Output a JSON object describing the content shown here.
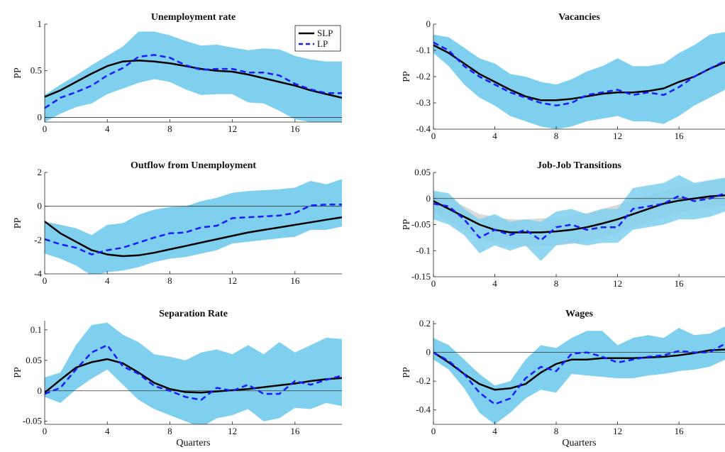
{
  "figure": {
    "xlabel_bottom": "Quarters"
  },
  "colors": {
    "band_slp": "#7fd0ee",
    "band_lp": "#d9d9d9",
    "slp": "#000000",
    "lp": "#1a1aff",
    "zero": "#333333"
  },
  "chart_data": [
    {
      "type": "line",
      "title": "Unemployment rate",
      "ylabel": "PP",
      "xlabel": "",
      "xlim": [
        0,
        19
      ],
      "xticks": [
        0,
        4,
        8,
        12,
        16
      ],
      "ylim": [
        -0.05,
        1
      ],
      "yticks": [
        0,
        0.5,
        1
      ],
      "ytick_labels": [
        "0",
        "0.5",
        "1"
      ],
      "legend": {
        "position": "top-right",
        "entries": [
          "SLP",
          "LP"
        ]
      },
      "x": [
        0,
        1,
        2,
        3,
        4,
        5,
        6,
        7,
        8,
        9,
        10,
        11,
        12,
        13,
        14,
        15,
        16,
        17,
        18,
        19
      ],
      "series": [
        {
          "name": "SLP",
          "values": [
            0.22,
            0.29,
            0.38,
            0.47,
            0.55,
            0.6,
            0.61,
            0.6,
            0.58,
            0.55,
            0.52,
            0.5,
            0.49,
            0.46,
            0.42,
            0.38,
            0.34,
            0.29,
            0.25,
            0.21
          ]
        },
        {
          "name": "LP",
          "values": [
            0.1,
            0.21,
            0.27,
            0.34,
            0.45,
            0.53,
            0.65,
            0.67,
            0.64,
            0.56,
            0.51,
            0.52,
            0.52,
            0.48,
            0.48,
            0.45,
            0.36,
            0.3,
            0.26,
            0.26
          ]
        }
      ],
      "bands": [
        {
          "upper": [
            0.24,
            0.35,
            0.45,
            0.56,
            0.66,
            0.76,
            0.92,
            0.92,
            0.88,
            0.82,
            0.77,
            0.78,
            0.75,
            0.72,
            0.74,
            0.73,
            0.66,
            0.62,
            0.6,
            0.6
          ],
          "lower": [
            -0.05,
            0.04,
            0.11,
            0.15,
            0.25,
            0.31,
            0.37,
            0.41,
            0.38,
            0.3,
            0.24,
            0.25,
            0.25,
            0.16,
            0.15,
            0.07,
            -0.02,
            -0.05,
            -0.07,
            -0.07
          ]
        }
      ]
    },
    {
      "type": "line",
      "title": "Vacancies",
      "ylabel": "PP",
      "xlabel": "",
      "xlim": [
        0,
        19
      ],
      "xticks": [
        0,
        4,
        8,
        12,
        16
      ],
      "ylim": [
        -0.4,
        0
      ],
      "yticks": [
        -0.4,
        -0.3,
        -0.2,
        -0.1,
        0
      ],
      "ytick_labels": [
        "-0.4",
        "-0.3",
        "-0.2",
        "-0.1",
        "0"
      ],
      "x": [
        0,
        1,
        2,
        3,
        4,
        5,
        6,
        7,
        8,
        9,
        10,
        11,
        12,
        13,
        14,
        15,
        16,
        17,
        18,
        19
      ],
      "series": [
        {
          "name": "SLP",
          "values": [
            -0.08,
            -0.11,
            -0.15,
            -0.19,
            -0.22,
            -0.25,
            -0.275,
            -0.29,
            -0.29,
            -0.285,
            -0.275,
            -0.265,
            -0.26,
            -0.26,
            -0.255,
            -0.245,
            -0.22,
            -0.2,
            -0.17,
            -0.145
          ]
        },
        {
          "name": "LP",
          "values": [
            -0.07,
            -0.1,
            -0.16,
            -0.2,
            -0.23,
            -0.26,
            -0.28,
            -0.3,
            -0.31,
            -0.3,
            -0.27,
            -0.26,
            -0.25,
            -0.27,
            -0.26,
            -0.27,
            -0.24,
            -0.2,
            -0.17,
            -0.14
          ]
        }
      ],
      "bands": [
        {
          "upper": [
            -0.04,
            -0.05,
            -0.09,
            -0.13,
            -0.15,
            -0.19,
            -0.2,
            -0.22,
            -0.23,
            -0.21,
            -0.18,
            -0.16,
            -0.13,
            -0.16,
            -0.16,
            -0.15,
            -0.11,
            -0.08,
            -0.04,
            -0.03
          ],
          "lower": [
            -0.11,
            -0.16,
            -0.23,
            -0.28,
            -0.31,
            -0.35,
            -0.37,
            -0.39,
            -0.4,
            -0.39,
            -0.37,
            -0.36,
            -0.35,
            -0.37,
            -0.37,
            -0.38,
            -0.35,
            -0.31,
            -0.28,
            -0.25
          ]
        }
      ]
    },
    {
      "type": "line",
      "title": "Outflow from Unemployment",
      "ylabel": "PP",
      "xlabel": "",
      "xlim": [
        0,
        19
      ],
      "xticks": [
        0,
        4,
        8,
        12,
        16
      ],
      "ylim": [
        -4,
        2
      ],
      "yticks": [
        -4,
        -2,
        0,
        2
      ],
      "ytick_labels": [
        "-4",
        "-2",
        "0",
        "2"
      ],
      "x": [
        0,
        1,
        2,
        3,
        4,
        5,
        6,
        7,
        8,
        9,
        10,
        11,
        12,
        13,
        14,
        15,
        16,
        17,
        18,
        19
      ],
      "series": [
        {
          "name": "SLP",
          "values": [
            -0.9,
            -1.6,
            -2.1,
            -2.6,
            -2.85,
            -2.95,
            -2.9,
            -2.75,
            -2.55,
            -2.35,
            -2.15,
            -1.95,
            -1.75,
            -1.55,
            -1.4,
            -1.25,
            -1.1,
            -0.95,
            -0.8,
            -0.65
          ]
        },
        {
          "name": "LP",
          "values": [
            -1.95,
            -2.25,
            -2.45,
            -2.85,
            -2.6,
            -2.45,
            -2.15,
            -1.85,
            -1.6,
            -1.55,
            -1.25,
            -1.15,
            -0.7,
            -0.65,
            -0.6,
            -0.55,
            -0.4,
            0.05,
            0.1,
            0.1
          ]
        }
      ],
      "bands": [
        {
          "upper": [
            -0.9,
            -1.1,
            -1.3,
            -1.7,
            -1.1,
            -1.0,
            -0.5,
            -0.2,
            -0.05,
            0.0,
            0.3,
            0.5,
            0.8,
            0.9,
            0.95,
            1.0,
            1.1,
            1.5,
            1.3,
            1.6
          ],
          "lower": [
            -2.8,
            -3.1,
            -3.5,
            -4.1,
            -3.9,
            -3.8,
            -3.6,
            -3.3,
            -3.1,
            -3.0,
            -2.8,
            -2.6,
            -2.2,
            -2.1,
            -2.0,
            -1.9,
            -1.8,
            -1.4,
            -1.4,
            -1.2
          ]
        }
      ]
    },
    {
      "type": "line",
      "title": "Job-Job Transitions",
      "ylabel": "PP",
      "xlabel": "",
      "xlim": [
        0,
        19
      ],
      "xticks": [
        0,
        4,
        8,
        12,
        16
      ],
      "ylim": [
        -0.15,
        0.05
      ],
      "yticks": [
        -0.15,
        -0.1,
        -0.05,
        0,
        0.05
      ],
      "ytick_labels": [
        "-0.15",
        "-0.1",
        "-0.05",
        "0",
        "0.05"
      ],
      "x": [
        0,
        1,
        2,
        3,
        4,
        5,
        6,
        7,
        8,
        9,
        10,
        11,
        12,
        13,
        14,
        15,
        16,
        17,
        18,
        19
      ],
      "series": [
        {
          "name": "SLP",
          "values": [
            -0.005,
            -0.02,
            -0.035,
            -0.05,
            -0.06,
            -0.065,
            -0.065,
            -0.065,
            -0.063,
            -0.06,
            -0.055,
            -0.048,
            -0.04,
            -0.03,
            -0.02,
            -0.01,
            -0.004,
            0.0,
            0.004,
            0.006
          ]
        },
        {
          "name": "LP",
          "values": [
            -0.01,
            -0.015,
            -0.04,
            -0.075,
            -0.06,
            -0.07,
            -0.06,
            -0.08,
            -0.055,
            -0.05,
            -0.06,
            -0.055,
            -0.055,
            -0.02,
            -0.015,
            -0.01,
            0.005,
            -0.005,
            0.0,
            0.01
          ]
        }
      ],
      "bands": [
        {
          "upper": [
            0.015,
            0.01,
            -0.02,
            -0.04,
            -0.03,
            -0.045,
            -0.04,
            -0.045,
            -0.025,
            -0.02,
            -0.03,
            -0.02,
            -0.02,
            0.02,
            0.025,
            0.03,
            0.045,
            0.03,
            0.035,
            0.04
          ],
          "lower": [
            -0.04,
            -0.05,
            -0.07,
            -0.105,
            -0.09,
            -0.1,
            -0.09,
            -0.12,
            -0.09,
            -0.085,
            -0.09,
            -0.085,
            -0.085,
            -0.06,
            -0.055,
            -0.05,
            -0.04,
            -0.04,
            -0.035,
            -0.025
          ]
        },
        {
          "upper": [
            0.01,
            0.0,
            -0.015,
            -0.03,
            -0.035,
            -0.04,
            -0.04,
            -0.038,
            -0.036,
            -0.033,
            -0.028,
            -0.02,
            -0.012,
            -0.003,
            0.006,
            0.015,
            0.022,
            0.028,
            0.033,
            0.038
          ],
          "lower": [
            -0.025,
            -0.045,
            -0.06,
            -0.075,
            -0.085,
            -0.09,
            -0.092,
            -0.092,
            -0.09,
            -0.087,
            -0.082,
            -0.075,
            -0.066,
            -0.056,
            -0.046,
            -0.036,
            -0.028,
            -0.022,
            -0.018,
            -0.015
          ]
        }
      ]
    },
    {
      "type": "line",
      "title": "Separation Rate",
      "ylabel": "PP",
      "xlabel": "Quarters",
      "xlim": [
        0,
        19
      ],
      "xticks": [
        0,
        4,
        8,
        12,
        16
      ],
      "ylim": [
        -0.055,
        0.115
      ],
      "yticks": [
        -0.05,
        0,
        0.05,
        0.1
      ],
      "ytick_labels": [
        "-0.05",
        "0",
        "0.05",
        "0.1"
      ],
      "x": [
        0,
        1,
        2,
        3,
        4,
        5,
        6,
        7,
        8,
        9,
        10,
        11,
        12,
        13,
        14,
        15,
        16,
        17,
        18,
        19
      ],
      "series": [
        {
          "name": "SLP",
          "values": [
            -0.003,
            0.018,
            0.038,
            0.047,
            0.052,
            0.045,
            0.03,
            0.013,
            0.003,
            -0.002,
            -0.003,
            -0.001,
            0.001,
            0.003,
            0.006,
            0.009,
            0.012,
            0.016,
            0.019,
            0.021
          ]
        },
        {
          "name": "LP",
          "values": [
            -0.005,
            0.005,
            0.035,
            0.063,
            0.075,
            0.04,
            0.028,
            0.008,
            0.0,
            -0.01,
            -0.015,
            0.005,
            0.0,
            0.01,
            -0.005,
            -0.005,
            0.016,
            0.01,
            0.018,
            0.025
          ]
        }
      ],
      "bands": [
        {
          "upper": [
            0.022,
            0.03,
            0.075,
            0.108,
            0.112,
            0.092,
            0.08,
            0.06,
            0.056,
            0.05,
            0.063,
            0.068,
            0.06,
            0.075,
            0.06,
            0.08,
            0.063,
            0.075,
            0.087,
            0.085
          ],
          "lower": [
            -0.01,
            -0.02,
            0.002,
            0.02,
            0.035,
            0.01,
            -0.015,
            -0.03,
            -0.04,
            -0.05,
            -0.06,
            -0.045,
            -0.04,
            -0.03,
            -0.05,
            -0.045,
            -0.028,
            -0.03,
            -0.02,
            -0.025
          ]
        }
      ]
    },
    {
      "type": "line",
      "title": "Wages",
      "ylabel": "PP",
      "xlabel": "Quarters",
      "xlim": [
        0,
        19
      ],
      "xticks": [
        0,
        4,
        8,
        12,
        16
      ],
      "ylim": [
        -0.5,
        0.22
      ],
      "yticks": [
        -0.4,
        -0.2,
        0,
        0.2
      ],
      "ytick_labels": [
        "-0.4",
        "-0.2",
        "0",
        "0.2"
      ],
      "x": [
        0,
        1,
        2,
        3,
        4,
        5,
        6,
        7,
        8,
        9,
        10,
        11,
        12,
        13,
        14,
        15,
        16,
        17,
        18,
        19
      ],
      "series": [
        {
          "name": "SLP",
          "values": [
            0.0,
            -0.07,
            -0.15,
            -0.22,
            -0.26,
            -0.25,
            -0.22,
            -0.14,
            -0.08,
            -0.05,
            -0.05,
            -0.04,
            -0.04,
            -0.04,
            -0.035,
            -0.03,
            -0.02,
            -0.005,
            0.015,
            0.02
          ]
        },
        {
          "name": "LP",
          "values": [
            0.0,
            -0.06,
            -0.15,
            -0.28,
            -0.36,
            -0.32,
            -0.18,
            -0.1,
            -0.13,
            -0.01,
            0.0,
            -0.03,
            -0.07,
            -0.05,
            -0.03,
            -0.02,
            0.01,
            0.0,
            0.0,
            0.06
          ]
        }
      ],
      "bands": [
        {
          "upper": [
            0.1,
            0.05,
            -0.05,
            -0.15,
            -0.23,
            -0.2,
            -0.05,
            0.05,
            0.03,
            0.1,
            0.15,
            0.15,
            0.05,
            0.1,
            0.12,
            0.1,
            0.17,
            0.12,
            0.13,
            0.18
          ],
          "lower": [
            -0.05,
            -0.12,
            -0.25,
            -0.42,
            -0.5,
            -0.42,
            -0.32,
            -0.26,
            -0.28,
            -0.15,
            -0.16,
            -0.17,
            -0.18,
            -0.18,
            -0.16,
            -0.15,
            -0.13,
            -0.12,
            -0.1,
            -0.05
          ]
        }
      ]
    }
  ]
}
